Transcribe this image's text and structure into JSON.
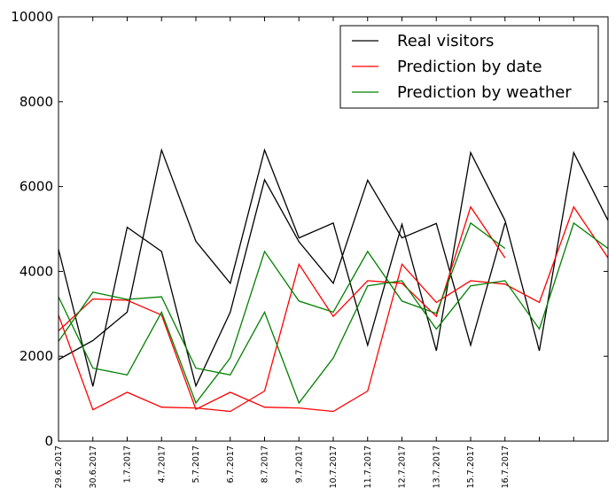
{
  "chart_data": {
    "type": "line",
    "categories": [
      "29.6.2017",
      "30.6.2017",
      "1.7.2017",
      "4.7.2017",
      "5.7.2017",
      "6.7.2017",
      "8.7.2017",
      "9.7.2017",
      "10.7.2017",
      "11.7.2017",
      "12.7.2017",
      "13.7.2017",
      "15.7.2017",
      "16.7.2017"
    ],
    "x_range": [
      0,
      16
    ],
    "ylim": [
      0,
      10000
    ],
    "yticks": [
      0,
      2000,
      4000,
      6000,
      8000,
      10000
    ],
    "legend_position": "top-right",
    "grid": false,
    "series": [
      {
        "name": "Real visitors",
        "color": "#000000",
        "segments": [
          {
            "x": [
              0,
              1,
              2,
              3,
              4,
              5,
              6,
              7,
              8,
              9,
              10,
              11,
              12,
              13
            ],
            "y": [
              4520,
              1290,
              5040,
              4470,
              1300,
              3040,
              6160,
              4700,
              3720,
              6150,
              4790,
              5130,
              2260,
              5140
            ]
          },
          {
            "x": [
              0,
              1,
              2,
              3,
              4,
              5,
              6,
              7,
              8,
              9,
              10,
              11,
              12,
              13,
              14,
              15,
              16
            ],
            "y": [
              1920,
              2370,
              3040,
              6860,
              4710,
              3720,
              6860,
              4790,
              5140,
              2260,
              5110,
              2130,
              6800,
              5200,
              2130,
              6800,
              5200
            ]
          }
        ]
      },
      {
        "name": "Prediction by date",
        "color": "#ff0000",
        "segments": [
          {
            "x": [
              0,
              1,
              2,
              3,
              4,
              5,
              6,
              7,
              8,
              9,
              10,
              11,
              12,
              13
            ],
            "y": [
              2970,
              740,
              1150,
              800,
              780,
              700,
              1180,
              4170,
              2940,
              3780,
              3720,
              2940,
              5520,
              4320
            ]
          },
          {
            "x": [
              0,
              1,
              2,
              3,
              4,
              5,
              6,
              7,
              8,
              9,
              10,
              11,
              12,
              13,
              14,
              15,
              16
            ],
            "y": [
              2600,
              3350,
              3320,
              2970,
              750,
              1150,
              800,
              780,
              700,
              1180,
              4170,
              3270,
              3780,
              3700,
              3270,
              5520,
              4320
            ]
          }
        ]
      },
      {
        "name": "Prediction by weather",
        "color": "#008000",
        "segments": [
          {
            "x": [
              0,
              1,
              2,
              3,
              4,
              5,
              6,
              7,
              8,
              9,
              10,
              11,
              12,
              13
            ],
            "y": [
              3400,
              1720,
              1560,
              3040,
              900,
              1960,
              4470,
              3300,
              3040,
              4470,
              3300,
              3010,
              5140,
              4540
            ]
          },
          {
            "x": [
              0,
              1,
              2,
              3,
              4,
              5,
              6,
              7,
              8,
              9,
              10,
              11,
              12,
              13,
              14,
              15,
              16
            ],
            "y": [
              2350,
              3510,
              3340,
              3400,
              1720,
              1560,
              3040,
              900,
              1960,
              3660,
              3780,
              2640,
              3660,
              3780,
              2640,
              5140,
              4540
            ]
          }
        ]
      }
    ]
  }
}
